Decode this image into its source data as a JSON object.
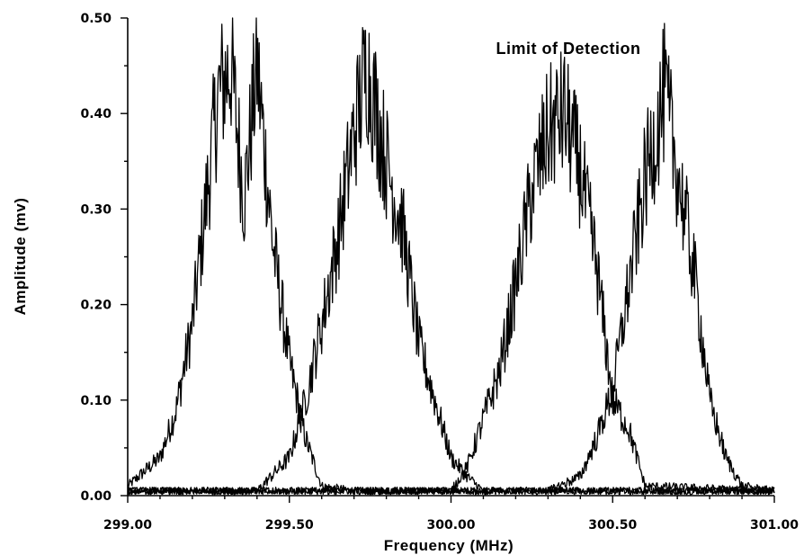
{
  "chart_data": {
    "type": "line",
    "title": "Limit of Detection",
    "xlabel": "Frequency (MHz)",
    "ylabel": "Amplitude (mv)",
    "xlim": [
      299.0,
      301.0
    ],
    "ylim": [
      0.0,
      0.5
    ],
    "x_ticks": [
      299.0,
      299.5,
      300.0,
      300.5,
      301.0
    ],
    "x_tick_labels": [
      "299.00",
      "299.50",
      "300.00",
      "300.50",
      "301.00"
    ],
    "y_ticks": [
      0.0,
      0.1,
      0.2,
      0.3,
      0.4,
      0.5
    ],
    "y_tick_labels": [
      "0.00",
      "0.10",
      "0.20",
      "0.30",
      "0.40",
      "0.50"
    ],
    "grid": false,
    "legend": "none",
    "series": [
      {
        "peak_center": 299.32,
        "peak_amplitude": 0.45,
        "x": [
          299.0,
          299.1,
          299.15,
          299.2,
          299.25,
          299.28,
          299.32,
          299.36,
          299.4,
          299.45,
          299.5,
          299.55,
          299.6,
          299.7,
          301.0
        ],
        "y": [
          0.01,
          0.04,
          0.09,
          0.18,
          0.33,
          0.42,
          0.45,
          0.31,
          0.45,
          0.26,
          0.14,
          0.06,
          0.01,
          0.005,
          0.005
        ]
      },
      {
        "peak_center": 299.74,
        "peak_amplitude": 0.45,
        "x": [
          299.0,
          299.4,
          299.5,
          299.55,
          299.6,
          299.65,
          299.7,
          299.74,
          299.8,
          299.85,
          299.9,
          299.95,
          300.0,
          300.05,
          300.1,
          301.0
        ],
        "y": [
          0.005,
          0.005,
          0.04,
          0.1,
          0.18,
          0.27,
          0.38,
          0.45,
          0.35,
          0.28,
          0.16,
          0.1,
          0.04,
          0.02,
          0.005,
          0.005
        ]
      },
      {
        "peak_center": 300.34,
        "peak_amplitude": 0.4,
        "x": [
          299.0,
          300.0,
          300.05,
          300.1,
          300.15,
          300.2,
          300.25,
          300.3,
          300.35,
          300.4,
          300.45,
          300.5,
          300.55,
          300.6,
          301.0
        ],
        "y": [
          0.005,
          0.005,
          0.03,
          0.08,
          0.13,
          0.22,
          0.32,
          0.38,
          0.4,
          0.34,
          0.24,
          0.1,
          0.07,
          0.01,
          0.005
        ]
      },
      {
        "peak_center": 300.66,
        "peak_amplitude": 0.42,
        "x": [
          299.0,
          300.3,
          300.4,
          300.45,
          300.5,
          300.55,
          300.6,
          300.66,
          300.7,
          300.75,
          300.8,
          300.85,
          300.9,
          301.0
        ],
        "y": [
          0.005,
          0.005,
          0.02,
          0.06,
          0.11,
          0.22,
          0.33,
          0.42,
          0.34,
          0.24,
          0.1,
          0.04,
          0.01,
          0.005
        ]
      }
    ]
  }
}
